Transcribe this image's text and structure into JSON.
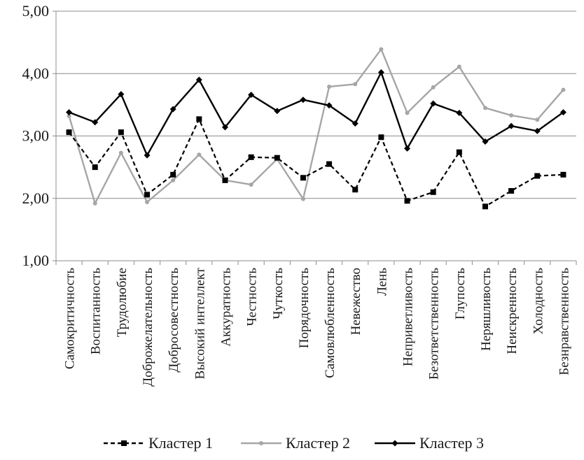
{
  "chart_data": {
    "type": "line",
    "title": "",
    "xlabel": "",
    "ylabel": "",
    "ylim": [
      1,
      5
    ],
    "y_ticks": [
      1,
      2,
      3,
      4,
      5
    ],
    "y_tick_labels": [
      "1,00",
      "2,00",
      "3,00",
      "4,00",
      "5,00"
    ],
    "grid": "horizontal",
    "legend_position": "bottom",
    "categories": [
      "Самокритичность",
      "Воспитанность",
      "Трудолюбие",
      "Доброжелательность",
      "Добросовестность",
      "Высокий интеллект",
      "Аккуратность",
      "Честность",
      "Чуткость",
      "Порядочность",
      "Самовлюбленность",
      "Невежество",
      "Лень",
      "Неприветливость",
      "Безответственность",
      "Глупость",
      "Неряшливость",
      "Неискренность",
      "Холодность",
      "Безнравственность"
    ],
    "series": [
      {
        "name": "Кластер 1",
        "color": "#000000",
        "line_style": "dashed",
        "marker": "square",
        "values": [
          3.06,
          2.5,
          3.06,
          2.06,
          2.38,
          3.27,
          2.29,
          2.66,
          2.65,
          2.33,
          2.55,
          2.14,
          2.98,
          1.96,
          2.1,
          2.74,
          1.87,
          2.12,
          2.36,
          2.38
        ]
      },
      {
        "name": "Кластер 2",
        "color": "#a6a6a6",
        "line_style": "solid",
        "marker": "dot",
        "values": [
          3.32,
          1.92,
          2.73,
          1.94,
          2.29,
          2.7,
          2.29,
          2.22,
          2.63,
          1.99,
          3.79,
          3.83,
          4.39,
          3.37,
          3.78,
          4.11,
          3.45,
          3.33,
          3.26,
          3.74
        ]
      },
      {
        "name": "Кластер 3",
        "color": "#000000",
        "line_style": "solid",
        "marker": "diamond",
        "values": [
          3.38,
          3.22,
          3.67,
          2.69,
          3.43,
          3.9,
          3.14,
          3.66,
          3.4,
          3.58,
          3.49,
          3.2,
          4.02,
          2.8,
          3.52,
          3.37,
          2.91,
          3.16,
          3.08,
          3.38
        ]
      }
    ]
  }
}
